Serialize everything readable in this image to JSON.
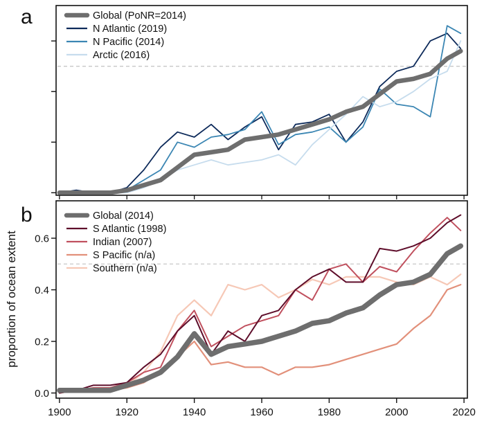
{
  "colors": {
    "global": "#6e6e6e",
    "n_atlantic": "#0d2a5a",
    "n_pacific": "#3b86b3",
    "arctic": "#c6dced",
    "s_atlantic": "#5e0d2a",
    "indian": "#c0505e",
    "s_pacific": "#e2907a",
    "southern": "#f6c8b6",
    "threshold": "#c8c8c8"
  },
  "chart_data": [
    {
      "type": "line",
      "panel_label": "a",
      "xlim": [
        1899,
        2021
      ],
      "ylim": [
        -0.01,
        0.74
      ],
      "y_ticks": [
        0,
        0.2,
        0.4,
        0.6
      ],
      "y_ticklabels": [
        "",
        "",
        "",
        ""
      ],
      "threshold": 0.5,
      "legend_position": "top-left",
      "x": [
        1900,
        1905,
        1910,
        1915,
        1920,
        1925,
        1930,
        1935,
        1940,
        1945,
        1950,
        1955,
        1960,
        1965,
        1970,
        1975,
        1980,
        1985,
        1990,
        1995,
        2000,
        2005,
        2010,
        2015,
        2019
      ],
      "series": [
        {
          "name": "N Atlantic (2019)",
          "key": "n_atlantic",
          "width": 1.8,
          "values": [
            0.0,
            0.01,
            0.0,
            0.0,
            0.02,
            0.09,
            0.18,
            0.24,
            0.22,
            0.27,
            0.21,
            0.26,
            0.3,
            0.17,
            0.27,
            0.28,
            0.31,
            0.2,
            0.28,
            0.42,
            0.48,
            0.5,
            0.6,
            0.63,
            0.57
          ]
        },
        {
          "name": "N Pacific (2014)",
          "key": "n_pacific",
          "width": 1.8,
          "values": [
            0.0,
            0.0,
            0.0,
            0.0,
            0.01,
            0.05,
            0.09,
            0.2,
            0.18,
            0.22,
            0.23,
            0.25,
            0.32,
            0.19,
            0.23,
            0.24,
            0.26,
            0.2,
            0.26,
            0.41,
            0.35,
            0.34,
            0.3,
            0.66,
            0.63
          ]
        },
        {
          "name": "Arctic (2016)",
          "key": "arctic",
          "width": 1.8,
          "values": [
            0.0,
            0.0,
            0.0,
            0.0,
            0.0,
            0.02,
            0.05,
            0.09,
            0.11,
            0.13,
            0.11,
            0.12,
            0.13,
            0.15,
            0.11,
            0.19,
            0.25,
            0.31,
            0.38,
            0.34,
            0.36,
            0.4,
            0.45,
            0.48,
            0.6
          ]
        },
        {
          "name": "Global (PoNR=2014)",
          "key": "global",
          "width": 6.5,
          "values": [
            0.0,
            0.0,
            0.0,
            0.0,
            0.01,
            0.03,
            0.05,
            0.1,
            0.15,
            0.16,
            0.17,
            0.21,
            0.22,
            0.23,
            0.25,
            0.27,
            0.29,
            0.32,
            0.34,
            0.39,
            0.44,
            0.45,
            0.47,
            0.53,
            0.56
          ]
        }
      ],
      "legend_order": [
        "global",
        "n_atlantic",
        "n_pacific",
        "arctic"
      ]
    },
    {
      "type": "line",
      "panel_label": "b",
      "xlim": [
        1899,
        2021
      ],
      "ylim": [
        -0.02,
        0.745
      ],
      "ylabel": "proportion of ocean extent",
      "y_ticks": [
        0.0,
        0.2,
        0.4,
        0.6
      ],
      "y_ticklabels": [
        "0.0",
        "0.2",
        "0.4",
        "0.6"
      ],
      "x_ticks": [
        1900,
        1920,
        1940,
        1960,
        1980,
        2000,
        2020
      ],
      "x_ticklabels": [
        "1900",
        "1920",
        "1940",
        "1960",
        "1980",
        "2000",
        "2020"
      ],
      "threshold": 0.5,
      "legend_position": "top-left",
      "x": [
        1900,
        1905,
        1910,
        1915,
        1920,
        1925,
        1930,
        1935,
        1940,
        1945,
        1950,
        1955,
        1960,
        1965,
        1970,
        1975,
        1980,
        1985,
        1990,
        1995,
        2000,
        2005,
        2010,
        2015,
        2019
      ],
      "series": [
        {
          "name": "Southern (n/a)",
          "key": "southern",
          "width": 2.2,
          "values": [
            0.01,
            0.01,
            0.02,
            0.02,
            0.03,
            0.08,
            0.16,
            0.3,
            0.36,
            0.3,
            0.42,
            0.4,
            0.42,
            0.37,
            0.4,
            0.44,
            0.42,
            0.45,
            0.45,
            0.45,
            0.43,
            0.42,
            0.45,
            0.42,
            0.46
          ]
        },
        {
          "name": "S Pacific (n/a)",
          "key": "s_pacific",
          "width": 2.2,
          "values": [
            0.0,
            0.01,
            0.01,
            0.01,
            0.02,
            0.04,
            0.08,
            0.14,
            0.2,
            0.11,
            0.12,
            0.1,
            0.1,
            0.07,
            0.1,
            0.1,
            0.11,
            0.13,
            0.15,
            0.17,
            0.19,
            0.25,
            0.3,
            0.4,
            0.42
          ]
        },
        {
          "name": "Indian (2007)",
          "key": "indian",
          "width": 2.0,
          "values": [
            0.0,
            0.01,
            0.02,
            0.02,
            0.04,
            0.08,
            0.1,
            0.24,
            0.32,
            0.18,
            0.22,
            0.26,
            0.28,
            0.3,
            0.4,
            0.36,
            0.48,
            0.5,
            0.43,
            0.49,
            0.47,
            0.55,
            0.62,
            0.68,
            0.63
          ]
        },
        {
          "name": "S Atlantic (1998)",
          "key": "s_atlantic",
          "width": 2.0,
          "values": [
            0.0,
            0.01,
            0.03,
            0.03,
            0.04,
            0.1,
            0.15,
            0.24,
            0.3,
            0.15,
            0.24,
            0.2,
            0.3,
            0.32,
            0.4,
            0.45,
            0.48,
            0.43,
            0.43,
            0.56,
            0.55,
            0.57,
            0.6,
            0.66,
            0.69
          ]
        },
        {
          "name": "Global (2014)",
          "key": "global",
          "width": 7.5,
          "values": [
            0.01,
            0.01,
            0.01,
            0.01,
            0.03,
            0.05,
            0.08,
            0.14,
            0.23,
            0.15,
            0.18,
            0.19,
            0.2,
            0.22,
            0.24,
            0.27,
            0.28,
            0.31,
            0.33,
            0.38,
            0.42,
            0.43,
            0.46,
            0.54,
            0.57
          ]
        }
      ],
      "legend_order": [
        "global",
        "s_atlantic",
        "indian",
        "s_pacific",
        "southern"
      ]
    }
  ]
}
